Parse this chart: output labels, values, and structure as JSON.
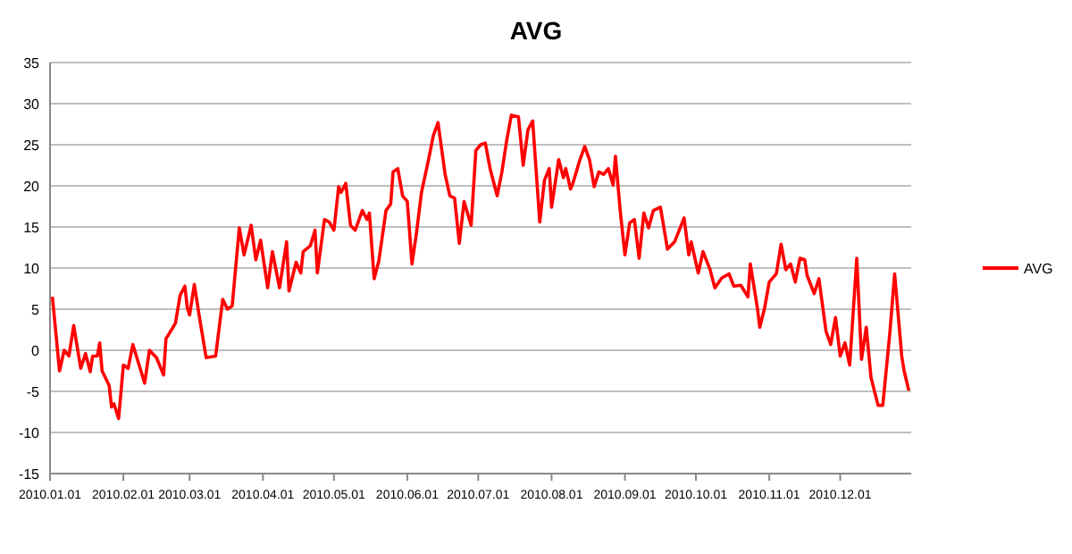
{
  "chart_data": {
    "type": "line",
    "title": "AVG",
    "x": [
      "2010-01-02",
      "2010-01-05",
      "2010-01-07",
      "2010-01-09",
      "2010-01-11",
      "2010-01-14",
      "2010-01-16",
      "2010-01-18",
      "2010-01-19",
      "2010-01-21",
      "2010-01-22",
      "2010-01-23",
      "2010-01-26",
      "2010-01-27",
      "2010-01-28",
      "2010-01-30",
      "2010-02-01",
      "2010-02-03",
      "2010-02-05",
      "2010-02-10",
      "2010-02-12",
      "2010-02-15",
      "2010-02-18",
      "2010-02-19",
      "2010-02-22",
      "2010-02-23",
      "2010-02-25",
      "2010-02-27",
      "2010-02-28",
      "2010-03-01",
      "2010-03-03",
      "2010-03-05",
      "2010-03-08",
      "2010-03-12",
      "2010-03-15",
      "2010-03-17",
      "2010-03-19",
      "2010-03-22",
      "2010-03-24",
      "2010-03-27",
      "2010-03-29",
      "2010-03-31",
      "2010-04-03",
      "2010-04-05",
      "2010-04-08",
      "2010-04-11",
      "2010-04-12",
      "2010-04-15",
      "2010-04-17",
      "2010-04-18",
      "2010-04-21",
      "2010-04-23",
      "2010-04-24",
      "2010-04-27",
      "2010-04-29",
      "2010-05-01",
      "2010-05-03",
      "2010-05-04",
      "2010-05-06",
      "2010-05-08",
      "2010-05-10",
      "2010-05-13",
      "2010-05-15",
      "2010-05-16",
      "2010-05-18",
      "2010-05-20",
      "2010-05-23",
      "2010-05-25",
      "2010-05-26",
      "2010-05-28",
      "2010-05-30",
      "2010-06-01",
      "2010-06-03",
      "2010-06-05",
      "2010-06-07",
      "2010-06-10",
      "2010-06-12",
      "2010-06-14",
      "2010-06-17",
      "2010-06-19",
      "2010-06-21",
      "2010-06-23",
      "2010-06-25",
      "2010-06-28",
      "2010-06-30",
      "2010-07-02",
      "2010-07-04",
      "2010-07-06",
      "2010-07-09",
      "2010-07-11",
      "2010-07-13",
      "2010-07-15",
      "2010-07-18",
      "2010-07-20",
      "2010-07-22",
      "2010-07-24",
      "2010-07-27",
      "2010-07-29",
      "2010-07-31",
      "2010-08-01",
      "2010-08-04",
      "2010-08-06",
      "2010-08-07",
      "2010-08-09",
      "2010-08-10",
      "2010-08-13",
      "2010-08-15",
      "2010-08-17",
      "2010-08-19",
      "2010-08-21",
      "2010-08-23",
      "2010-08-25",
      "2010-08-27",
      "2010-08-28",
      "2010-08-30",
      "2010-09-01",
      "2010-09-03",
      "2010-09-05",
      "2010-09-07",
      "2010-09-09",
      "2010-09-11",
      "2010-09-13",
      "2010-09-16",
      "2010-09-19",
      "2010-09-22",
      "2010-09-26",
      "2010-09-28",
      "2010-09-29",
      "2010-10-02",
      "2010-10-04",
      "2010-10-07",
      "2010-10-09",
      "2010-10-12",
      "2010-10-15",
      "2010-10-17",
      "2010-10-20",
      "2010-10-23",
      "2010-10-24",
      "2010-10-27",
      "2010-10-28",
      "2010-10-30",
      "2010-11-01",
      "2010-11-04",
      "2010-11-06",
      "2010-11-08",
      "2010-11-10",
      "2010-11-12",
      "2010-11-14",
      "2010-11-16",
      "2010-11-17",
      "2010-11-20",
      "2010-11-22",
      "2010-11-25",
      "2010-11-27",
      "2010-11-29",
      "2010-12-01",
      "2010-12-03",
      "2010-12-05",
      "2010-12-08",
      "2010-12-10",
      "2010-12-12",
      "2010-12-14",
      "2010-12-17",
      "2010-12-19",
      "2010-12-22",
      "2010-12-24",
      "2010-12-27",
      "2010-12-28",
      "2010-12-30"
    ],
    "series": [
      {
        "name": "AVG",
        "color": "#ff0000",
        "values": [
          6.5,
          -2.5,
          0,
          -0.7,
          3,
          -2.2,
          -0.4,
          -2.6,
          -0.7,
          -0.7,
          0.9,
          -2.5,
          -4.3,
          -6.9,
          -6.5,
          -8.3,
          -1.8,
          -2.2,
          0.7,
          -4,
          0,
          -0.9,
          -3,
          1.4,
          2.8,
          3.3,
          6.7,
          7.8,
          5.2,
          4.3,
          8,
          4.3,
          -0.9,
          -0.7,
          6.2,
          5,
          5.4,
          14.9,
          11.6,
          15.2,
          11,
          13.4,
          7.6,
          12,
          7.6,
          13.2,
          7.2,
          10.7,
          9.4,
          12,
          12.7,
          14.6,
          9.4,
          15.9,
          15.6,
          14.6,
          19.9,
          19.2,
          20.3,
          15.2,
          14.6,
          17,
          15.9,
          16.7,
          8.7,
          10.9,
          17,
          17.8,
          21.7,
          22.1,
          18.8,
          18.1,
          10.5,
          14.5,
          19.2,
          23.2,
          26.1,
          27.7,
          21.4,
          18.8,
          18.5,
          13,
          18.1,
          15.2,
          24.3,
          25,
          25.2,
          22.1,
          18.8,
          21.7,
          25.5,
          28.6,
          28.4,
          22.5,
          26.8,
          27.9,
          15.6,
          20.7,
          22.1,
          17.4,
          23.2,
          21,
          22.1,
          19.6,
          20.3,
          23.2,
          24.8,
          23.2,
          19.9,
          21.7,
          21.4,
          22.1,
          20.1,
          23.6,
          17,
          11.6,
          15.5,
          15.9,
          11.2,
          16.7,
          14.9,
          17,
          17.4,
          12.3,
          13.2,
          16.1,
          11.6,
          13.2,
          9.4,
          12,
          9.8,
          7.6,
          8.8,
          9.3,
          7.8,
          7.9,
          6.5,
          10.5,
          5.1,
          2.8,
          5.1,
          8.3,
          9.3,
          12.9,
          9.8,
          10.5,
          8.3,
          11.2,
          11,
          9.1,
          6.9,
          8.7,
          2.3,
          0.7,
          4,
          -0.7,
          0.9,
          -1.8,
          11.2,
          -1.1,
          2.8,
          -3.3,
          -6.7,
          -6.7,
          2.2,
          9.3,
          -0.7,
          -2.5,
          -4.9
        ]
      }
    ],
    "xlim": [
      "2010-01-01",
      "2010-12-31"
    ],
    "xticks": [
      {
        "value": "2010-01-01",
        "label": "2010.01.01"
      },
      {
        "value": "2010-02-01",
        "label": "2010.02.01"
      },
      {
        "value": "2010-03-01",
        "label": "2010.03.01"
      },
      {
        "value": "2010-04-01",
        "label": "2010.04.01"
      },
      {
        "value": "2010-05-01",
        "label": "2010.05.01"
      },
      {
        "value": "2010-06-01",
        "label": "2010.06.01"
      },
      {
        "value": "2010-07-01",
        "label": "2010.07.01"
      },
      {
        "value": "2010-08-01",
        "label": "2010.08.01"
      },
      {
        "value": "2010-09-01",
        "label": "2010.09.01"
      },
      {
        "value": "2010-10-01",
        "label": "2010.10.01"
      },
      {
        "value": "2010-11-01",
        "label": "2010.11.01"
      },
      {
        "value": "2010-12-01",
        "label": "2010.12.01"
      }
    ],
    "ylim": [
      -15,
      35
    ],
    "yticks": [
      -15,
      -10,
      -5,
      0,
      5,
      10,
      15,
      20,
      25,
      30,
      35
    ],
    "grid": "y",
    "legend": "right",
    "marker": "none",
    "line_style": "solid"
  }
}
